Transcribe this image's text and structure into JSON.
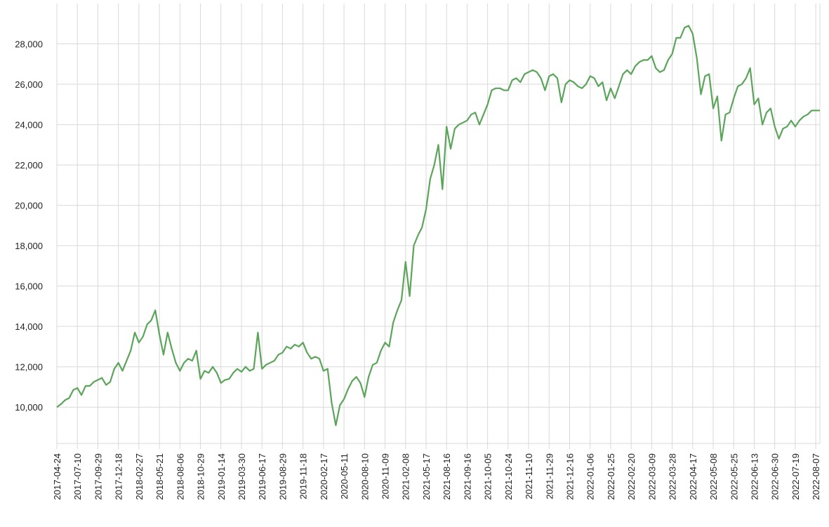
{
  "chart_data": {
    "type": "line",
    "categories": [
      "2017-04-24",
      null,
      null,
      null,
      null,
      "2017-07-10",
      null,
      null,
      null,
      null,
      "2017-09-29",
      null,
      null,
      null,
      null,
      "2017-12-18",
      null,
      null,
      null,
      null,
      "2018-02-27",
      null,
      null,
      null,
      null,
      "2018-05-21",
      null,
      null,
      null,
      null,
      "2018-08-06",
      null,
      null,
      null,
      null,
      "2018-10-29",
      null,
      null,
      null,
      null,
      "2019-01-14",
      null,
      null,
      null,
      null,
      "2019-03-30",
      null,
      null,
      null,
      null,
      "2019-06-17",
      null,
      null,
      null,
      null,
      "2019-08-29",
      null,
      null,
      null,
      null,
      "2019-11-18",
      null,
      null,
      null,
      null,
      "2020-02-17",
      null,
      null,
      null,
      null,
      "2020-05-11",
      null,
      null,
      null,
      null,
      "2020-08-10",
      null,
      null,
      null,
      null,
      "2020-11-09",
      null,
      null,
      null,
      null,
      "2021-02-08",
      null,
      null,
      null,
      null,
      "2021-05-17",
      null,
      null,
      null,
      null,
      "2021-08-16",
      null,
      null,
      null,
      null,
      "2021-09-16",
      null,
      null,
      null,
      null,
      "2021-10-05",
      null,
      null,
      null,
      null,
      "2021-10-24",
      null,
      null,
      null,
      null,
      "2021-11-10",
      null,
      null,
      null,
      null,
      "2021-11-29",
      null,
      null,
      null,
      null,
      "2021-12-16",
      null,
      null,
      null,
      null,
      "2022-01-06",
      null,
      null,
      null,
      null,
      "2022-01-25",
      null,
      null,
      null,
      null,
      "2022-02-20",
      null,
      null,
      null,
      null,
      "2022-03-09",
      null,
      null,
      null,
      null,
      "2022-03-28",
      null,
      null,
      null,
      null,
      "2022-04-17",
      null,
      null,
      null,
      null,
      "2022-05-08",
      null,
      null,
      null,
      null,
      "2022-05-25",
      null,
      null,
      null,
      null,
      "2022-06-13",
      null,
      null,
      null,
      null,
      "2022-06-30",
      null,
      null,
      null,
      null,
      "2022-07-19",
      null,
      null,
      null,
      null,
      "2022-08-07",
      null
    ],
    "series": [
      {
        "color": "#5ba55a",
        "values": [
          10000,
          10150,
          10350,
          10450,
          10850,
          10950,
          10600,
          11050,
          11050,
          11250,
          11350,
          11450,
          11100,
          11250,
          11900,
          12200,
          11800,
          12300,
          12800,
          13700,
          13200,
          13500,
          14100,
          14300,
          14800,
          13600,
          12600,
          13700,
          12900,
          12200,
          11800,
          12200,
          12400,
          12300,
          12800,
          11400,
          11800,
          11700,
          12000,
          11700,
          11200,
          11350,
          11400,
          11700,
          11900,
          11750,
          12000,
          11800,
          11900,
          13700,
          11900,
          12100,
          12200,
          12300,
          12600,
          12700,
          13000,
          12900,
          13100,
          13000,
          13200,
          12700,
          12400,
          12500,
          12400,
          11800,
          11900,
          10200,
          9100,
          10100,
          10400,
          10900,
          11300,
          11500,
          11200,
          10500,
          11500,
          12100,
          12200,
          12800,
          13200,
          13000,
          14200,
          14800,
          15300,
          17200,
          15500,
          18000,
          18500,
          18900,
          19800,
          21300,
          22000,
          23000,
          20800,
          23900,
          22800,
          23800,
          24000,
          24100,
          24200,
          24500,
          24600,
          24000,
          24500,
          25000,
          25700,
          25800,
          25800,
          25700,
          25700,
          26200,
          26300,
          26100,
          26500,
          26600,
          26700,
          26600,
          26300,
          25700,
          26400,
          26500,
          26300,
          25100,
          26000,
          26200,
          26100,
          25900,
          25800,
          26000,
          26400,
          26300,
          25900,
          26100,
          25200,
          25800,
          25300,
          25900,
          26500,
          26700,
          26500,
          26900,
          27100,
          27200,
          27200,
          27400,
          26800,
          26600,
          26700,
          27200,
          27500,
          28300,
          28300,
          28800,
          28900,
          28500,
          27300,
          25500,
          26400,
          26500,
          24800,
          25400,
          23200,
          24500,
          24600,
          25300,
          25900,
          26000,
          26300,
          26800,
          25000,
          25300,
          24000,
          24600,
          24800,
          23900,
          23300,
          23800,
          23900,
          24200,
          23900,
          24200,
          24400,
          24500,
          24700,
          24700,
          24700
        ]
      }
    ],
    "ylim": [
      8200,
      30000
    ],
    "yticks": [
      {
        "value": 10000,
        "label": "10,000"
      },
      {
        "value": 12000,
        "label": "12,000"
      },
      {
        "value": 14000,
        "label": "14,000"
      },
      {
        "value": 16000,
        "label": "16,000"
      },
      {
        "value": 18000,
        "label": "18,000"
      },
      {
        "value": 20000,
        "label": "20,000"
      },
      {
        "value": 22000,
        "label": "22,000"
      },
      {
        "value": 24000,
        "label": "24,000"
      },
      {
        "value": 26000,
        "label": "26,000"
      },
      {
        "value": 28000,
        "label": "28,000"
      }
    ],
    "grid": true
  }
}
